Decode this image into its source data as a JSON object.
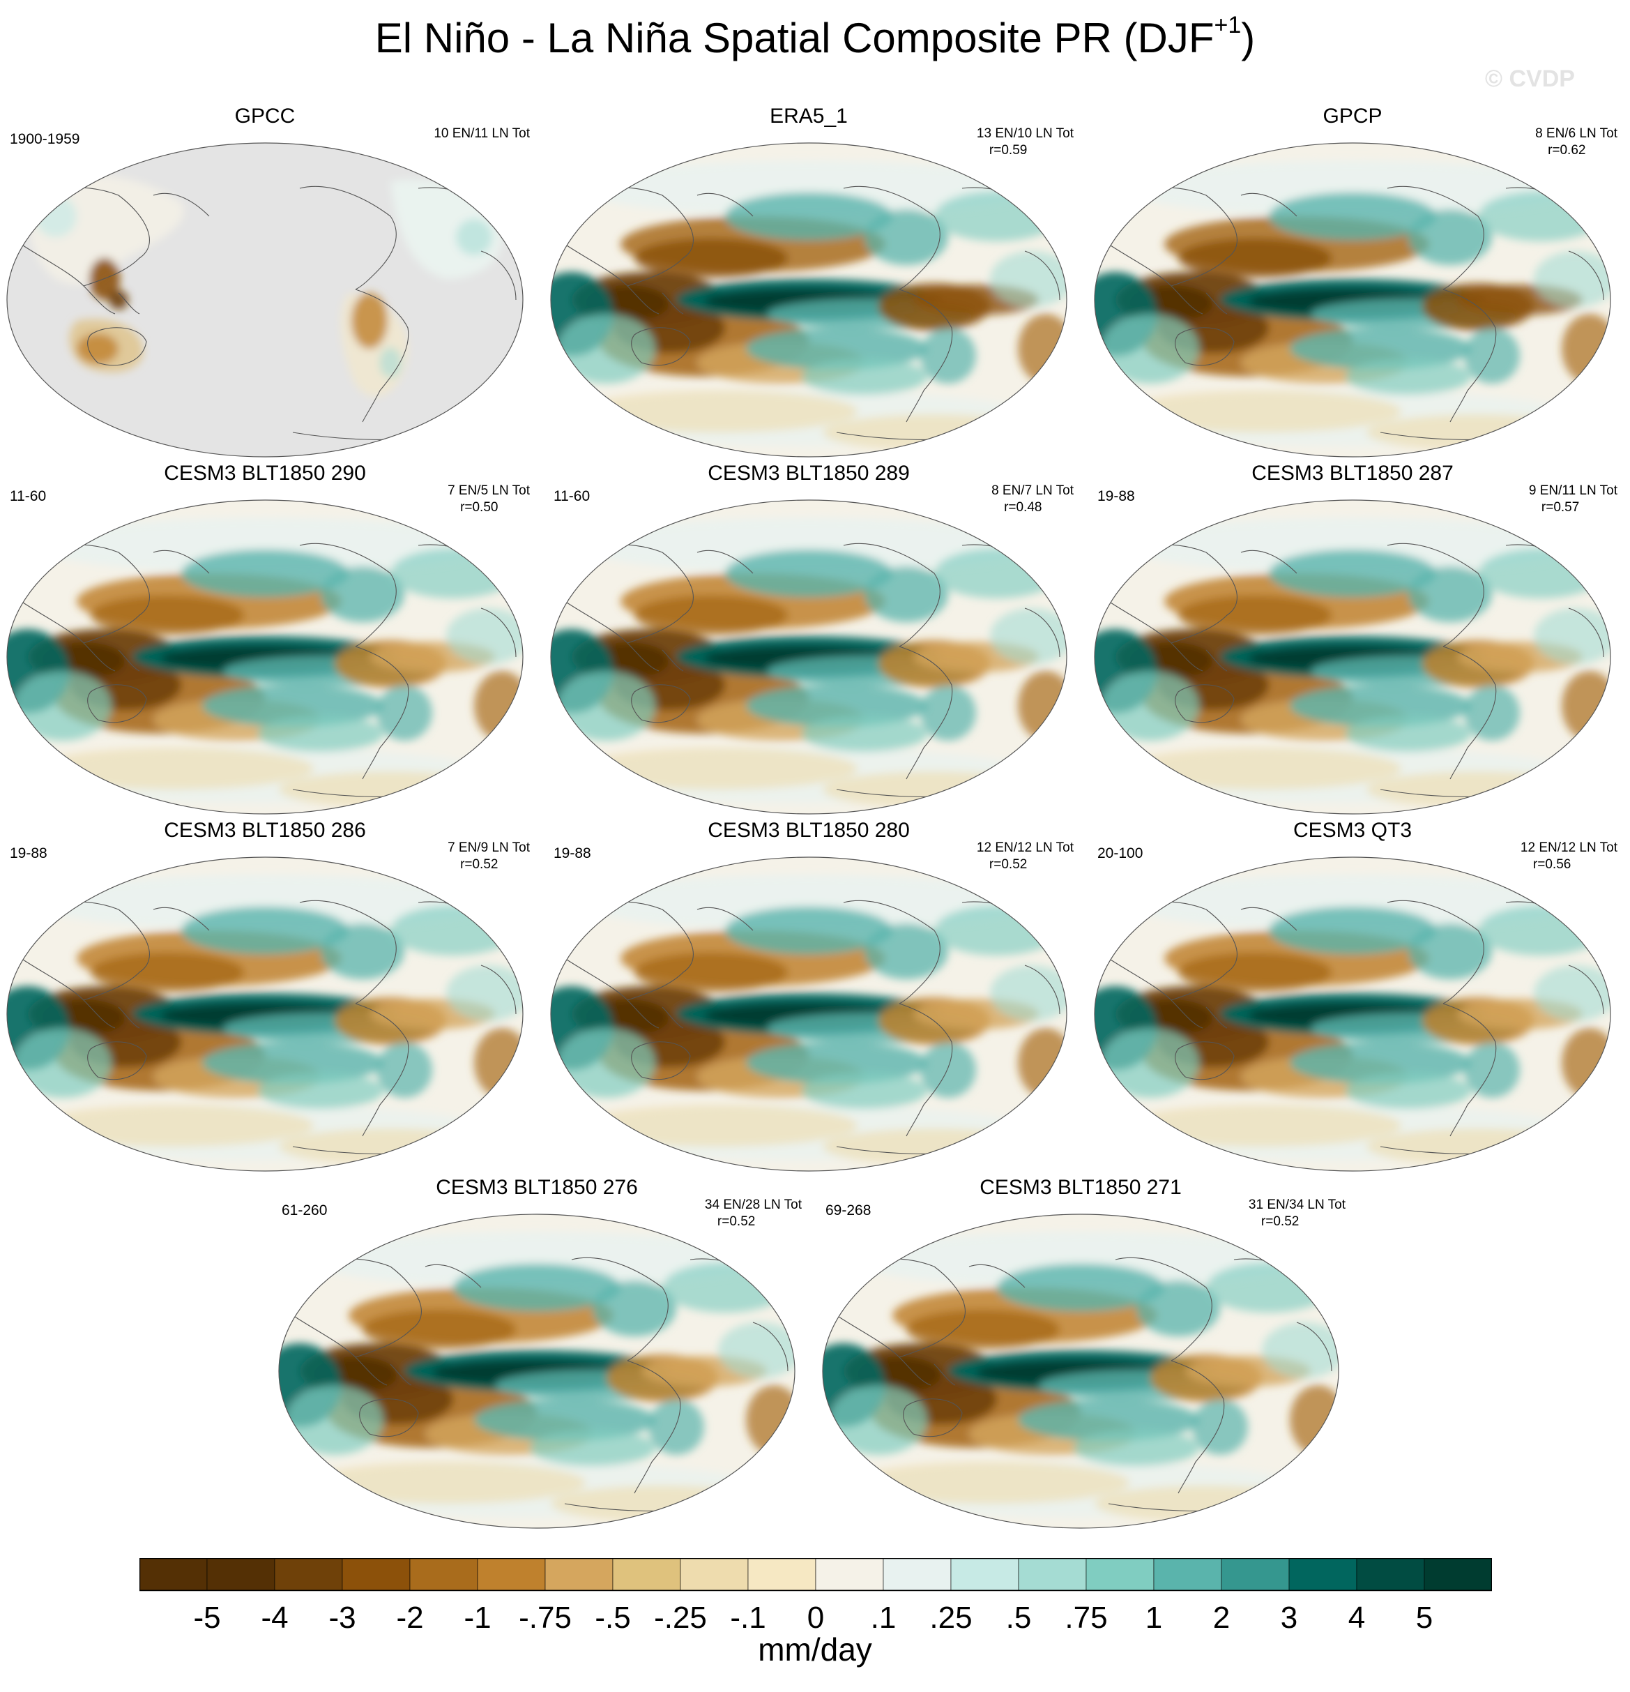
{
  "title": {
    "main": "El Niño - La Niña Spatial Composite PR (DJF",
    "superscript": "+1",
    "close": ")"
  },
  "watermark": "© CVDP",
  "panels": [
    {
      "id": "gpcc",
      "title": "GPCC",
      "period": "1900-1959",
      "counts": "10 EN/11 LN Tot",
      "r": "",
      "pattern": "sparse"
    },
    {
      "id": "era5",
      "title": "ERA5_1",
      "period": "",
      "counts": "13 EN/10 LN Tot",
      "r": "r=0.59",
      "pattern": "obs"
    },
    {
      "id": "gpcp",
      "title": "GPCP",
      "period": "",
      "counts": "8 EN/6 LN Tot",
      "r": "r=0.62",
      "pattern": "obs"
    },
    {
      "id": "m290",
      "title": "CESM3 BLT1850 290",
      "period": "11-60",
      "counts": "7 EN/5 LN Tot",
      "r": "r=0.50",
      "pattern": "model"
    },
    {
      "id": "m289",
      "title": "CESM3 BLT1850 289",
      "period": "11-60",
      "counts": "8 EN/7 LN Tot",
      "r": "r=0.48",
      "pattern": "model"
    },
    {
      "id": "m287",
      "title": "CESM3 BLT1850 287",
      "period": "19-88",
      "counts": "9 EN/11 LN Tot",
      "r": "r=0.57",
      "pattern": "model"
    },
    {
      "id": "m286",
      "title": "CESM3 BLT1850 286",
      "period": "19-88",
      "counts": "7 EN/9 LN Tot",
      "r": "r=0.52",
      "pattern": "model"
    },
    {
      "id": "m280",
      "title": "CESM3 BLT1850 280",
      "period": "19-88",
      "counts": "12 EN/12 LN Tot",
      "r": "r=0.52",
      "pattern": "model"
    },
    {
      "id": "qt3",
      "title": "CESM3 QT3",
      "period": "20-100",
      "counts": "12 EN/12 LN Tot",
      "r": "r=0.56",
      "pattern": "model"
    },
    {
      "id": "m276",
      "title": "CESM3 BLT1850 276",
      "period": "61-260",
      "counts": "34 EN/28 LN Tot",
      "r": "r=0.52",
      "pattern": "model"
    },
    {
      "id": "m271",
      "title": "CESM3 BLT1850 271",
      "period": "69-268",
      "counts": "31 EN/34 LN Tot",
      "r": "r=0.52",
      "pattern": "model"
    }
  ],
  "colorbar": {
    "labels": [
      "-5",
      "-4",
      "-3",
      "-2",
      "-1",
      "-.75",
      "-.5",
      "-.25",
      "-.1",
      "0",
      ".1",
      ".25",
      ".5",
      ".75",
      "1",
      "2",
      "3",
      "4",
      "5"
    ],
    "colors": [
      "#543005",
      "#6f4109",
      "#8c510a",
      "#a96c1c",
      "#bf812d",
      "#d5a65e",
      "#dfc27d",
      "#eedcae",
      "#f6e8c3",
      "#f5f2e8",
      "#e8f2f0",
      "#c7eae5",
      "#a5dcd3",
      "#80cdc1",
      "#5ab4ac",
      "#35978f",
      "#01665e",
      "#014c42",
      "#003c30"
    ],
    "units": "mm/day"
  }
}
